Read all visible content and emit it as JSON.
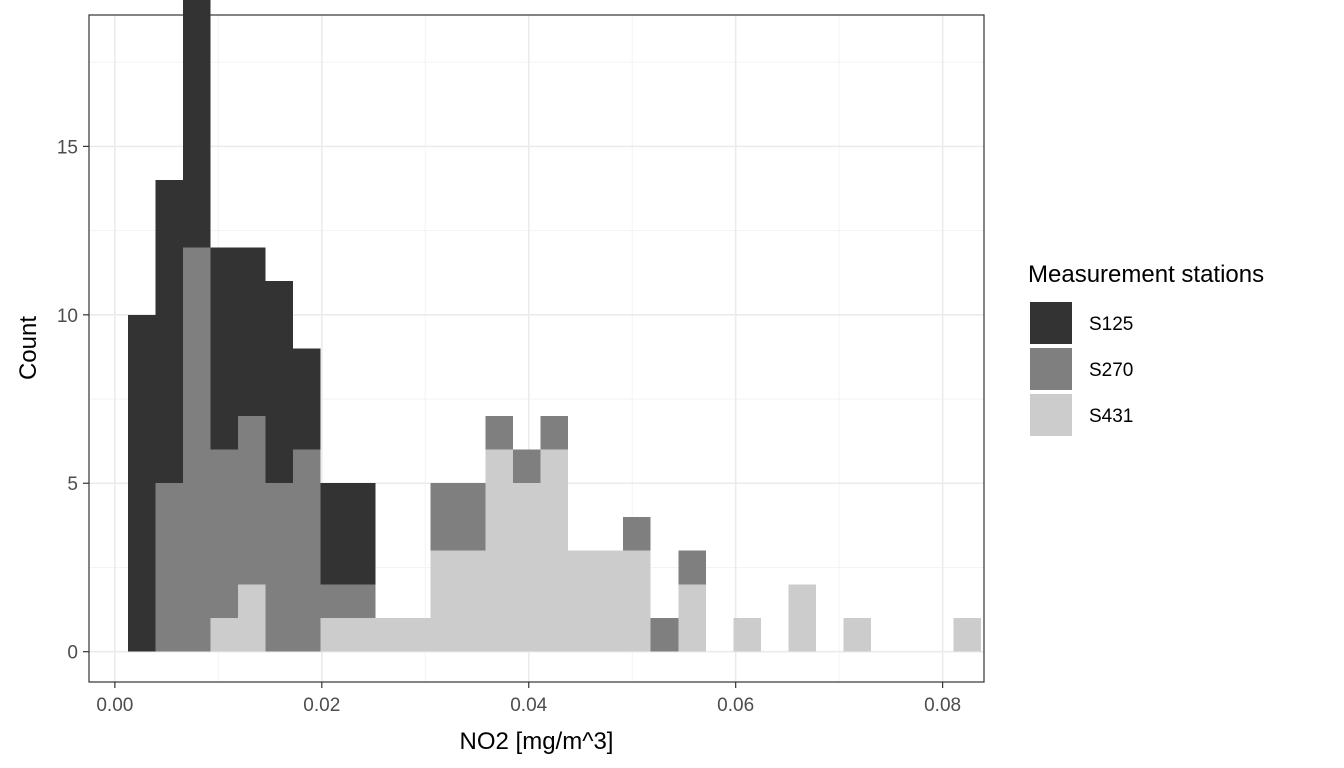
{
  "chart_data": {
    "type": "bar",
    "subtype": "stacked histogram",
    "xlabel": "NO2 [mg/m^3]",
    "ylabel": "Count",
    "xlim": [
      -0.0025,
      0.084
    ],
    "ylim": [
      -0.9,
      18.9
    ],
    "x_ticks": [
      0.0,
      0.02,
      0.04,
      0.06,
      0.08
    ],
    "x_tick_labels": [
      "0.00",
      "0.02",
      "0.04",
      "0.06",
      "0.08"
    ],
    "y_ticks": [
      0,
      5,
      10,
      15
    ],
    "y_tick_labels": [
      "0",
      "5",
      "10",
      "15"
    ],
    "grid": true,
    "bins": {
      "start": 0.00125,
      "width": 0.00266,
      "count": 31
    },
    "series": [
      {
        "name": "S125",
        "color": "#333333",
        "values": [
          10,
          9,
          9,
          6,
          5,
          6,
          3,
          3,
          3,
          0,
          0,
          0,
          0,
          0,
          0,
          0,
          0,
          0,
          0,
          0,
          0,
          0,
          0,
          0,
          0,
          0,
          0,
          0,
          0,
          0,
          0
        ]
      },
      {
        "name": "S270",
        "color": "#7f7f7f",
        "values": [
          0,
          5,
          12,
          5,
          5,
          5,
          6,
          1,
          1,
          0,
          0,
          2,
          2,
          1,
          1,
          1,
          0,
          0,
          1,
          1,
          1,
          0,
          0,
          0,
          0,
          0,
          0,
          0,
          0,
          0,
          0
        ]
      },
      {
        "name": "S431",
        "color": "#cccccc",
        "values": [
          0,
          0,
          0,
          1,
          2,
          0,
          0,
          1,
          1,
          1,
          1,
          3,
          3,
          6,
          5,
          6,
          3,
          3,
          3,
          0,
          2,
          0,
          1,
          0,
          2,
          0,
          1,
          0,
          0,
          0,
          1
        ]
      }
    ],
    "legend": {
      "title": "Measurement stations",
      "placement": "right"
    }
  }
}
